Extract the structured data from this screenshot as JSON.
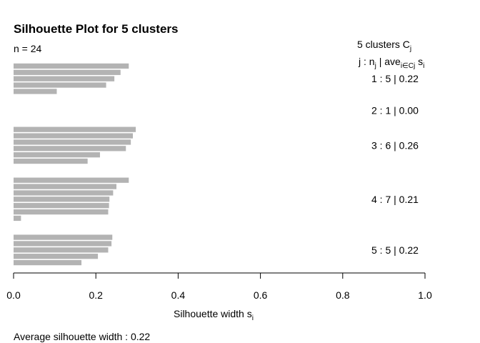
{
  "chart_data": {
    "type": "bar",
    "orientation": "horizontal",
    "title": "Silhouette Plot for 5 clusters",
    "n_label": "n = 24",
    "xlabel": "Silhouette width s",
    "xlabel_sub": "i",
    "xlim": [
      0,
      1
    ],
    "xticks": [
      "0.0",
      "0.2",
      "0.4",
      "0.6",
      "0.8",
      "1.0"
    ],
    "bar_color": "#b3b3b3",
    "legend": {
      "header_line1": "5  clusters  C",
      "header_line1_sub": "j",
      "header_line2_a": "j :  n",
      "header_line2_a_sub": "j",
      "header_line2_b": " | ave",
      "header_line2_b_sub": "i∈Cj",
      "header_line2_c": "  s",
      "header_line2_c_sub": "i"
    },
    "clusters": [
      {
        "label": "1 :   5  |  0.22",
        "n": 5,
        "avg": 0.22,
        "values": [
          0.28,
          0.26,
          0.245,
          0.225,
          0.105
        ]
      },
      {
        "label": "2 :   1  |  0.00",
        "n": 1,
        "avg": 0.0,
        "values": [
          0.0
        ]
      },
      {
        "label": "3 :   6  |  0.26",
        "n": 6,
        "avg": 0.26,
        "values": [
          0.297,
          0.29,
          0.285,
          0.273,
          0.21,
          0.18
        ]
      },
      {
        "label": "4 :   7  |  0.21",
        "n": 7,
        "avg": 0.21,
        "values": [
          0.28,
          0.25,
          0.242,
          0.233,
          0.232,
          0.23,
          0.018
        ]
      },
      {
        "label": "5 :   5  |  0.22",
        "n": 5,
        "avg": 0.22,
        "values": [
          0.24,
          0.238,
          0.23,
          0.205,
          0.165
        ]
      }
    ],
    "footer": "Average silhouette width :  0.22"
  }
}
